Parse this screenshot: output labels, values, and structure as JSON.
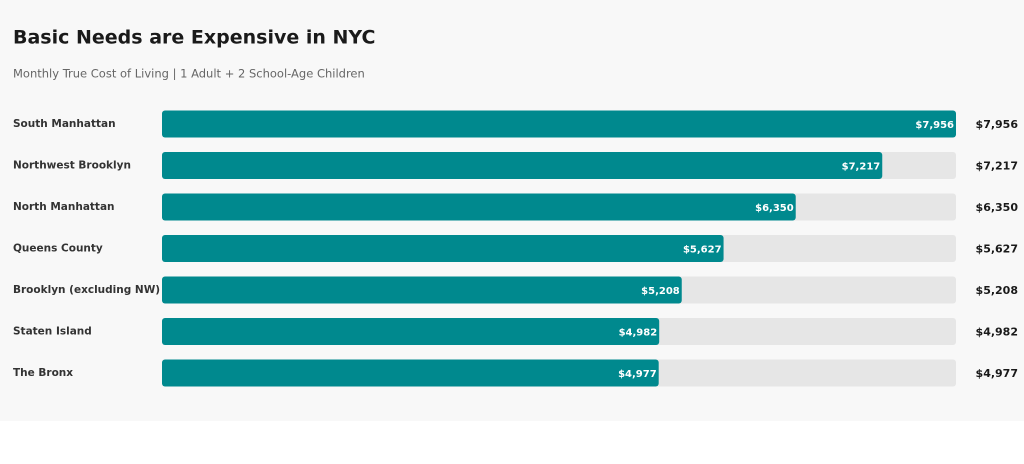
{
  "chart_data": {
    "type": "bar",
    "title": "Basic Needs are Expensive in NYC",
    "subtitle": "Monthly True Cost of Living | 1 Adult + 2 School-Age Children",
    "categories": [
      "South Manhattan",
      "Northwest Brooklyn",
      "North Manhattan",
      "Queens County",
      "Brooklyn (excluding NW)",
      "Staten Island",
      "The Bronx"
    ],
    "values": [
      7956,
      7217,
      6350,
      5627,
      5208,
      4982,
      4977
    ],
    "value_labels": [
      "$7,956",
      "$7,217",
      "$6,350",
      "$5,627",
      "$5,208",
      "$4,982",
      "$4,977"
    ],
    "color": "#00898e"
  }
}
